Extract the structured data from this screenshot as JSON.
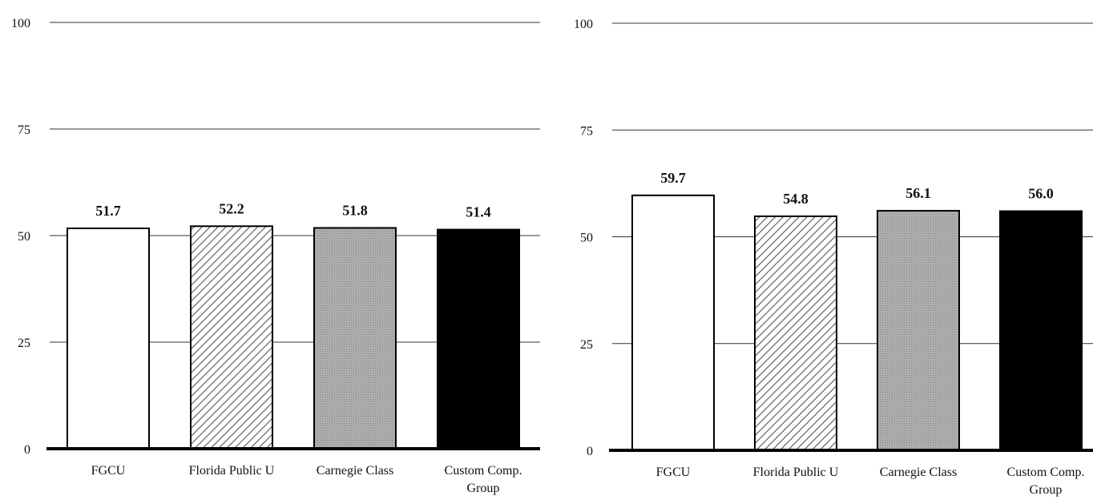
{
  "chart_data": [
    {
      "type": "bar",
      "categories": [
        "FGCU",
        "Florida Public U",
        "Carnegie Class",
        "Custom Comp. Group"
      ],
      "values": [
        51.7,
        52.2,
        51.8,
        51.4
      ],
      "data_labels": [
        "51.7",
        "52.2",
        "51.8",
        "51.4"
      ],
      "ylim": [
        0,
        100
      ],
      "yticks": [
        "0",
        "25",
        "50",
        "75",
        "100"
      ],
      "grid": true,
      "fills": [
        "white",
        "hatch",
        "gray",
        "black"
      ]
    },
    {
      "type": "bar",
      "categories": [
        "FGCU",
        "Florida Public U",
        "Carnegie Class",
        "Custom Comp. Group"
      ],
      "values": [
        59.7,
        54.8,
        56.1,
        56.0
      ],
      "data_labels": [
        "59.7",
        "54.8",
        "56.1",
        "56.0"
      ],
      "ylim": [
        0,
        100
      ],
      "yticks": [
        "0",
        "25",
        "50",
        "75",
        "100"
      ],
      "grid": true,
      "fills": [
        "white",
        "hatch",
        "gray",
        "black"
      ]
    }
  ],
  "colors": {
    "bar_white": "#ffffff",
    "bar_gray": "#a8a8a8",
    "bar_black": "#000000",
    "hatch_line": "#555555",
    "grid": "#333333",
    "axis": "#000000"
  }
}
